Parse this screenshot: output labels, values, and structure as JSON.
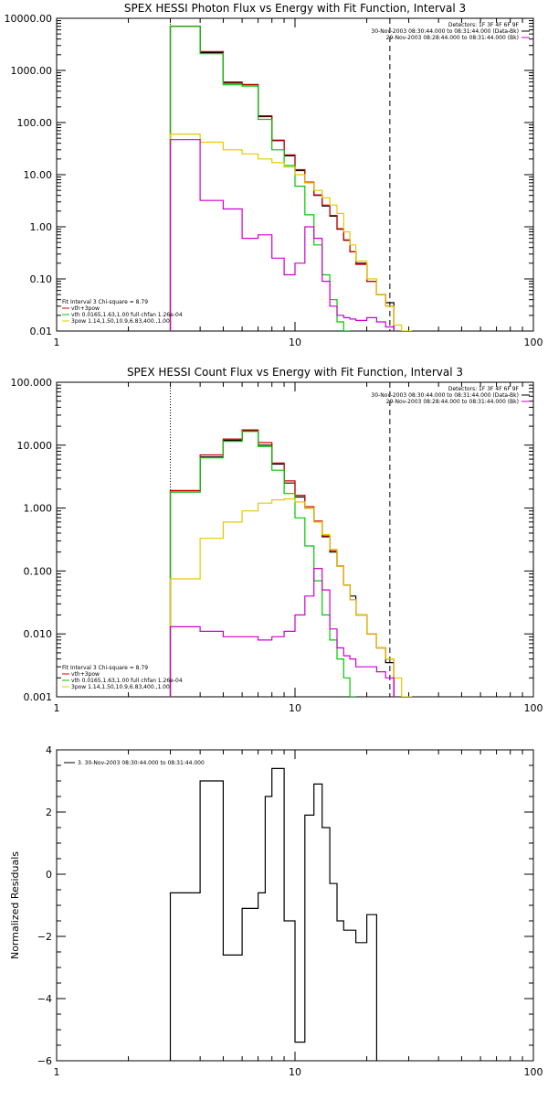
{
  "chart_data": [
    {
      "type": "line",
      "title": "SPEX HESSI Photon Flux vs Energy with Fit Function, Interval 3",
      "xlabel": "",
      "ylabel": "",
      "x_scale": "log",
      "y_scale": "log",
      "xlim": [
        1,
        100
      ],
      "ylim": [
        0.01,
        10000
      ],
      "grid": false,
      "y_ticks": [
        {
          "v": 0.01,
          "label": "0.01"
        },
        {
          "v": 0.1,
          "label": "0.10"
        },
        {
          "v": 1,
          "label": "1.00"
        },
        {
          "v": 10,
          "label": "10.00"
        },
        {
          "v": 100,
          "label": "100.00"
        },
        {
          "v": 1000,
          "label": "1000.00"
        },
        {
          "v": 10000,
          "label": "10000.00"
        }
      ],
      "x_ticks": [
        {
          "v": 1,
          "label": "1"
        },
        {
          "v": 10,
          "label": "10"
        },
        {
          "v": 100,
          "label": "100"
        }
      ],
      "vlines": [
        {
          "x": 3,
          "style": "dotted",
          "color": "#000000"
        },
        {
          "x": 25,
          "style": "dashed",
          "color": "#000000"
        }
      ],
      "bin_edges": [
        3,
        4,
        5,
        6,
        7,
        8,
        9,
        10,
        11,
        12,
        13,
        14,
        15,
        16,
        17,
        18,
        20,
        22,
        24,
        26,
        28,
        31
      ],
      "series": [
        {
          "name": "",
          "color": "#000000",
          "values": [
            7000,
            2200,
            570,
            530,
            130,
            45,
            23,
            12,
            7,
            4,
            2.5,
            1.6,
            0.9,
            0.55,
            0.33,
            0.2,
            0.09,
            0.05,
            0.035,
            null,
            null
          ]
        },
        {
          "name": "vth+3pow",
          "color": "#d00000",
          "values": [
            7000,
            2300,
            600,
            540,
            135,
            46,
            24,
            12.5,
            7.2,
            4.1,
            2.6,
            1.65,
            0.92,
            0.56,
            0.33,
            0.19,
            0.09,
            0.05,
            0.03,
            null,
            null
          ]
        },
        {
          "name": "vth 0.0165,1.63,1.00 full chfan 1.26e-04",
          "color": "#00c800",
          "values": [
            7000,
            2100,
            530,
            500,
            115,
            30,
            15,
            6,
            1.7,
            0.45,
            0.12,
            0.04,
            0.015,
            0.01,
            null,
            null,
            null,
            null,
            null,
            null,
            null
          ]
        },
        {
          "name": "3pow 1.14,1.50,10.9,6.83,400.,1.00",
          "color": "#e6c800",
          "values": [
            60,
            42,
            30,
            25,
            20,
            17,
            14,
            10,
            7,
            5,
            3.6,
            2.6,
            1.8,
            0.8,
            0.45,
            0.22,
            0.1,
            0.05,
            0.03,
            0.013,
            0.01
          ]
        },
        {
          "name": "",
          "color": "#d000d0",
          "values": [
            47,
            3.2,
            2.2,
            0.6,
            0.7,
            0.25,
            0.12,
            0.2,
            1.0,
            0.6,
            0.09,
            0.03,
            0.02,
            0.018,
            0.017,
            0.016,
            0.018,
            0.015,
            0.012,
            null,
            null
          ]
        }
      ],
      "legend_top_right": {
        "detectors": "Detectors: 1F 3F 4F 6F 9F",
        "line1": "30-Nov-2003 08:30:44.000 to 08:31:44.000 (Data-Bk)",
        "line2": "29-Nov-2003 08:28:44.000 to 08:31:44.000 (Bk)"
      },
      "legend_bottom_left": {
        "header": "Fit Interval  3   Chi-square = 8.79",
        "entries": [
          "vth+3pow",
          "vth 0.0165,1.63,1.00  full chfan 1.26e-04",
          "3pow 1.14,1.50,10.9,6.83,400.,1.00"
        ]
      }
    },
    {
      "type": "line",
      "title": "SPEX HESSI Count Flux vs Energy with Fit Function, Interval 3",
      "xlabel": "",
      "ylabel": "",
      "x_scale": "log",
      "y_scale": "log",
      "xlim": [
        1,
        100
      ],
      "ylim": [
        0.001,
        100
      ],
      "grid": false,
      "y_ticks": [
        {
          "v": 0.001,
          "label": "0.001"
        },
        {
          "v": 0.01,
          "label": "0.010"
        },
        {
          "v": 0.1,
          "label": "0.100"
        },
        {
          "v": 1,
          "label": "1.000"
        },
        {
          "v": 10,
          "label": "10.000"
        },
        {
          "v": 100,
          "label": "100.000"
        }
      ],
      "x_ticks": [
        {
          "v": 1,
          "label": "1"
        },
        {
          "v": 10,
          "label": "10"
        },
        {
          "v": 100,
          "label": "100"
        }
      ],
      "vlines": [
        {
          "x": 3,
          "style": "dotted",
          "color": "#000000"
        },
        {
          "x": 25,
          "style": "dashed",
          "color": "#000000"
        }
      ],
      "bin_edges": [
        3,
        4,
        5,
        6,
        7,
        8,
        9,
        10,
        11,
        12,
        13,
        14,
        15,
        16,
        17,
        18,
        20,
        22,
        24,
        26,
        28,
        31
      ],
      "series": [
        {
          "name": "",
          "color": "#000000",
          "values": [
            1.8,
            6.5,
            12,
            17,
            10,
            5,
            2.5,
            1.5,
            1.0,
            0.6,
            0.35,
            0.2,
            0.12,
            0.06,
            0.04,
            0.02,
            0.01,
            0.006,
            0.0035,
            null,
            null
          ]
        },
        {
          "name": "vth+3pow",
          "color": "#d00000",
          "values": [
            1.9,
            7,
            12.5,
            17.5,
            11,
            5.2,
            2.7,
            1.6,
            1.05,
            0.62,
            0.36,
            0.21,
            0.12,
            0.06,
            0.035,
            0.02,
            0.01,
            0.006,
            0.004,
            null,
            null
          ]
        },
        {
          "name": "vth 0.0165,1.63,1.00 full chfan 1.26e-04",
          "color": "#00c800",
          "values": [
            1.8,
            6.3,
            11.5,
            16.5,
            9.5,
            4,
            1.7,
            0.7,
            0.25,
            0.07,
            0.02,
            0.008,
            0.004,
            0.002,
            0.001,
            null,
            null,
            null,
            null,
            null,
            null
          ]
        },
        {
          "name": "3pow 1.14,1.50,10.9,6.83,400.,1.00",
          "color": "#e6c800",
          "values": [
            0.075,
            0.33,
            0.6,
            0.9,
            1.2,
            1.35,
            1.4,
            1.25,
            1.0,
            0.6,
            0.38,
            0.22,
            0.12,
            0.06,
            0.035,
            0.02,
            0.01,
            0.006,
            0.004,
            0.002,
            0.001
          ]
        },
        {
          "name": "",
          "color": "#d000d0",
          "values": [
            0.013,
            0.011,
            0.009,
            0.009,
            0.008,
            0.009,
            0.011,
            0.02,
            0.04,
            0.11,
            0.05,
            0.012,
            0.006,
            0.0045,
            0.004,
            0.003,
            0.003,
            0.0025,
            0.002,
            null,
            null
          ]
        }
      ],
      "legend_top_right": {
        "detectors": "Detectors: 1F 3F 4F 6F 9F",
        "line1": "30-Nov-2003 08:30:44.000 to 08:31:44.000 (Data-Bk)",
        "line2": "29-Nov-2003 08:28:44.000 to 08:31:44.000 (Bk)"
      },
      "legend_bottom_left": {
        "header": "Fit Interval  3   Chi-square = 8.79",
        "entries": [
          "vth+3pow",
          "vth 0.0165,1.63,1.00  full chfan 1.26e-04",
          "3pow 1.14,1.50,10.9,6.83,400.,1.00"
        ]
      }
    },
    {
      "type": "line",
      "title": "",
      "xlabel": "",
      "ylabel": "Normalized Residuals",
      "x_scale": "log",
      "y_scale": "linear",
      "xlim": [
        1,
        100
      ],
      "ylim": [
        -6,
        4
      ],
      "grid": false,
      "y_ticks": [
        {
          "v": -6,
          "label": "−6"
        },
        {
          "v": -4,
          "label": "−4"
        },
        {
          "v": -2,
          "label": "−2"
        },
        {
          "v": 0,
          "label": "0"
        },
        {
          "v": 2,
          "label": "2"
        },
        {
          "v": 4,
          "label": "4"
        }
      ],
      "x_ticks": [
        {
          "v": 1,
          "label": "1"
        },
        {
          "v": 10,
          "label": "10"
        },
        {
          "v": 100,
          "label": "100"
        }
      ],
      "vlines": [],
      "bin_edges": [
        3,
        4,
        5,
        6,
        7,
        7.5,
        8,
        9,
        10,
        11,
        12,
        13,
        14,
        15,
        16,
        18,
        20,
        22,
        24,
        26
      ],
      "series": [
        {
          "name": "3. 30-Nov-2003 08:30:44.000 to 08:31:44.000",
          "color": "#000000",
          "values": [
            -0.6,
            3.0,
            -2.6,
            -1.1,
            -0.6,
            2.5,
            3.4,
            -1.5,
            -5.4,
            1.9,
            2.9,
            1.5,
            -0.3,
            -1.5,
            -1.8,
            -2.2,
            -1.3,
            null,
            null
          ]
        }
      ],
      "legend_top_left": {
        "entry": "3. 30-Nov-2003 08:30:44.000 to 08:31:44.000"
      }
    }
  ]
}
